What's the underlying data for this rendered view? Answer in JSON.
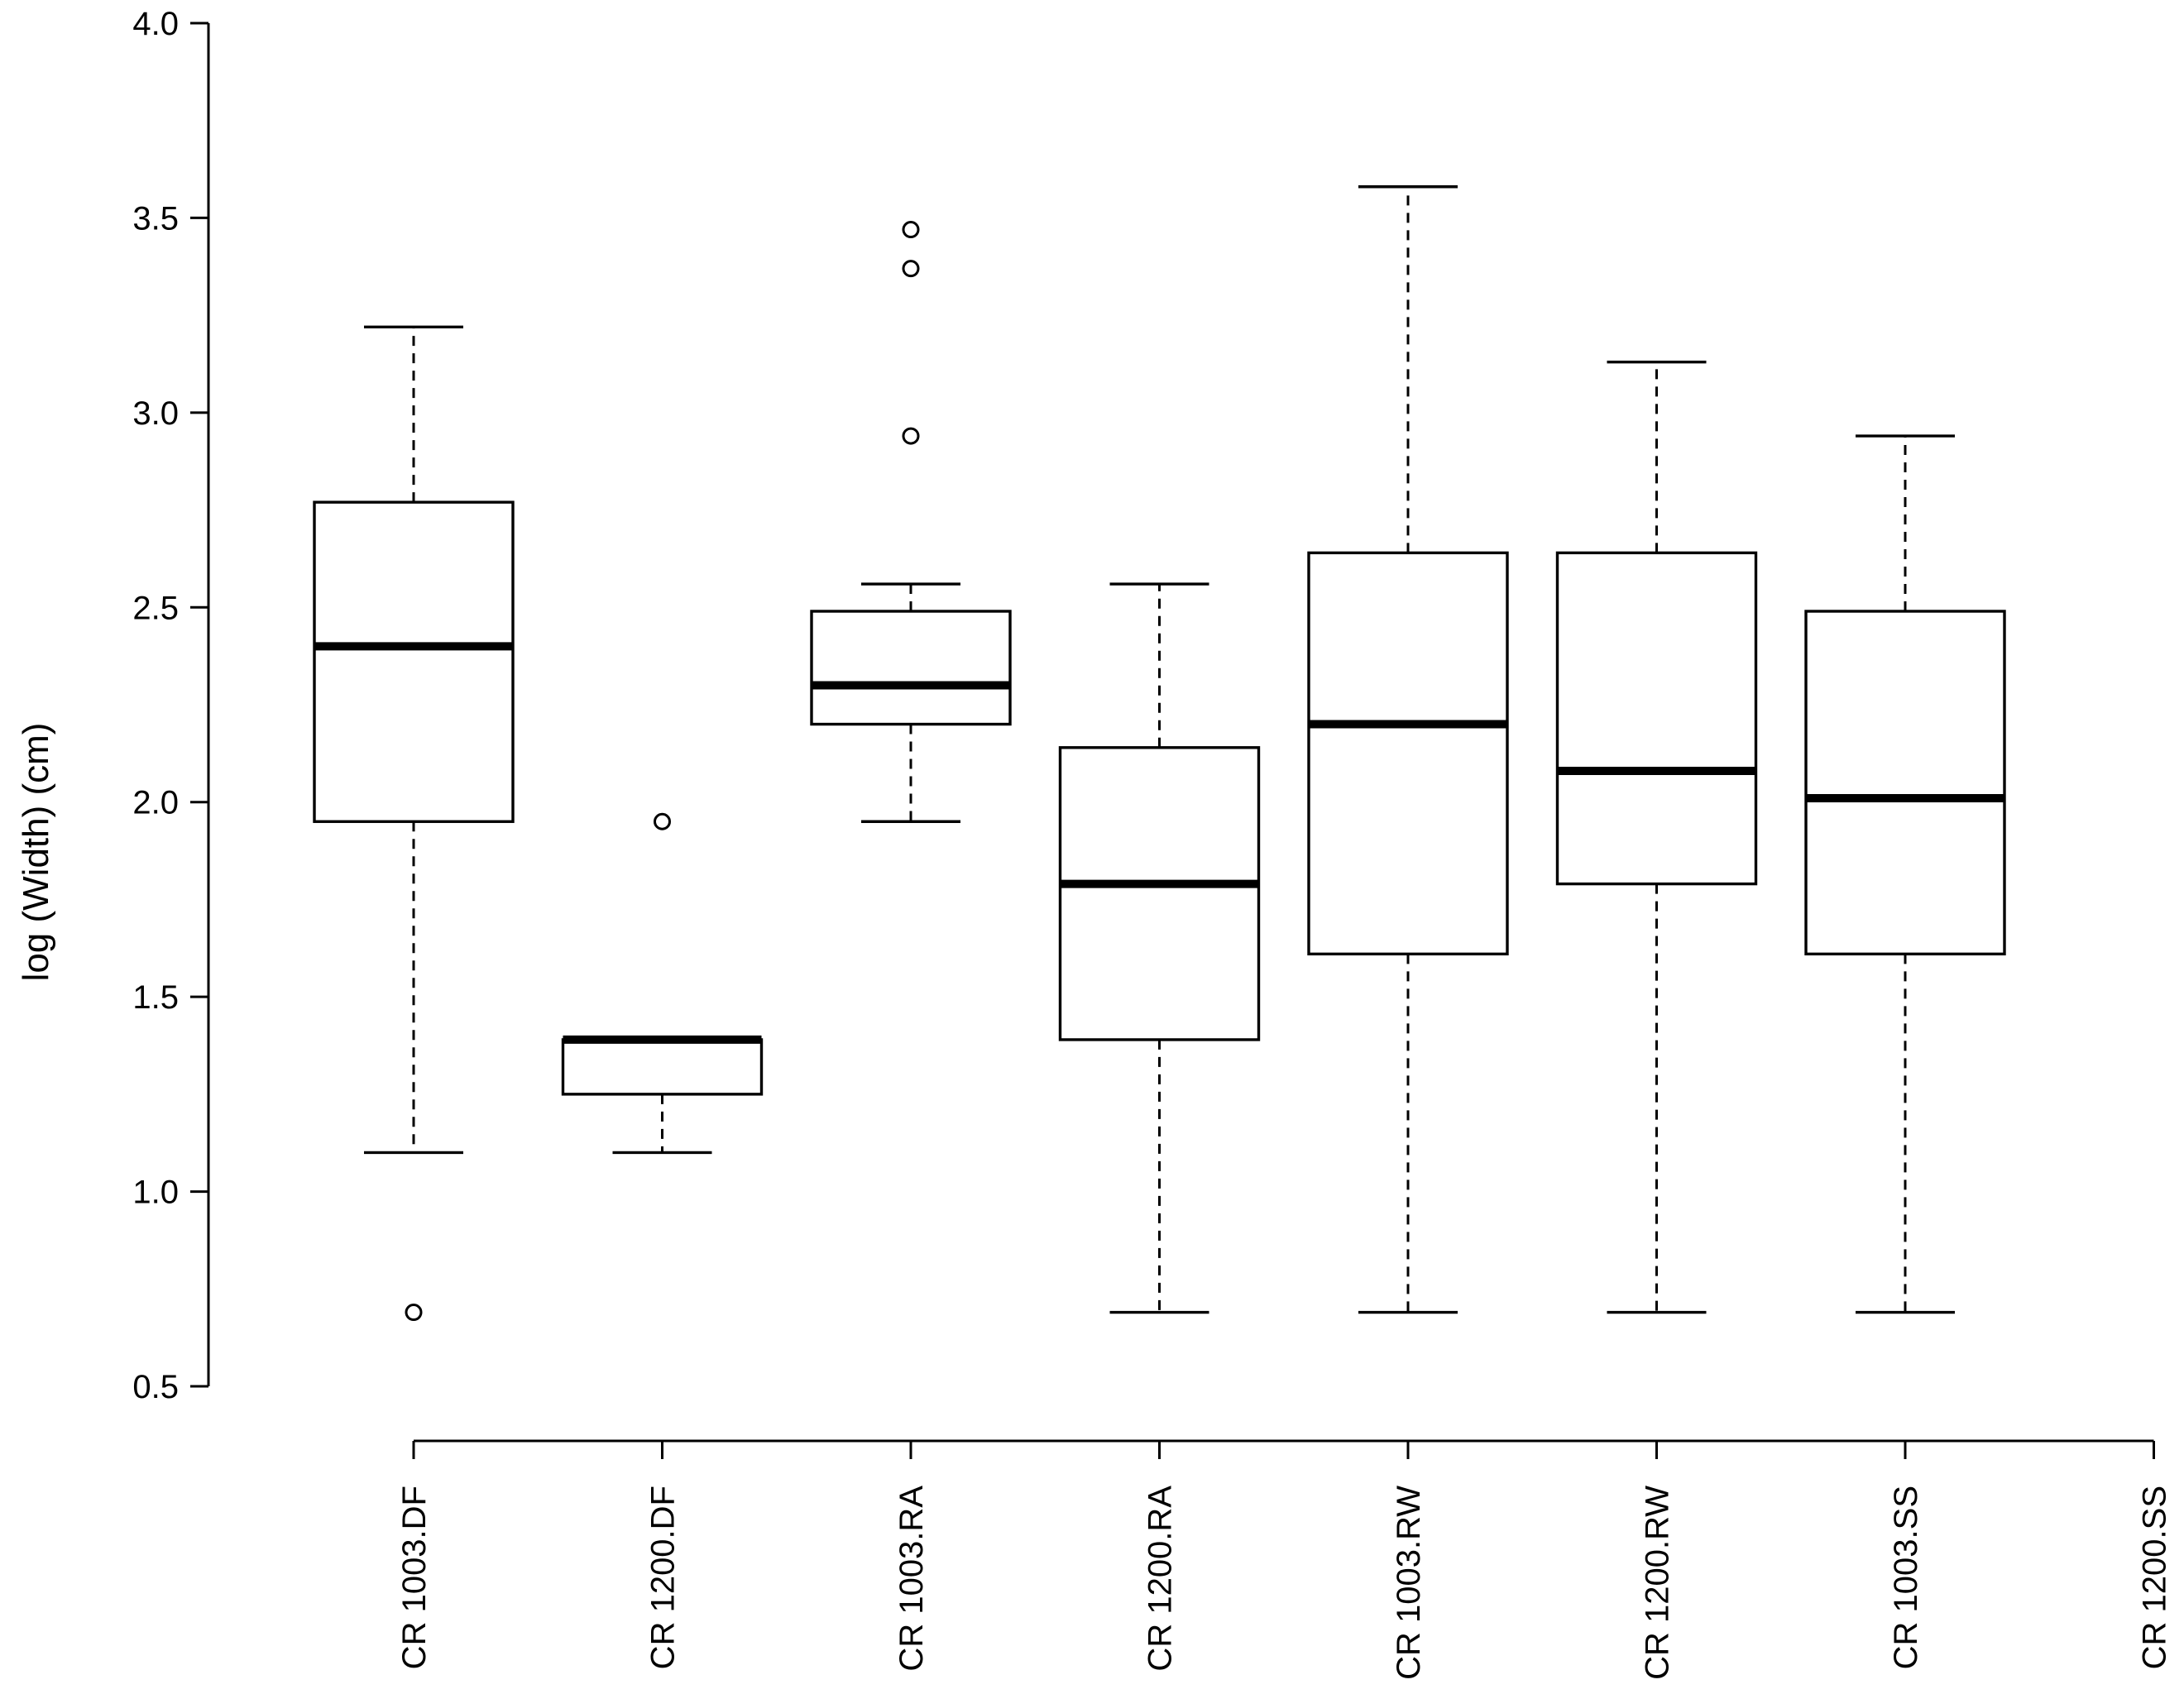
{
  "chart_data": {
    "type": "boxplot",
    "title": "",
    "xlabel": "",
    "ylabel": "log (Width) (cm)",
    "ylim": [
      0.5,
      4.0
    ],
    "yticks": [
      "0.5",
      "1.0",
      "1.5",
      "2.0",
      "2.5",
      "3.0",
      "3.5",
      "4.0"
    ],
    "categories": [
      "CR 1003.DF",
      "CR 1200.DF",
      "CR 1003.RA",
      "CR 1200.RA",
      "CR 1003.RW",
      "CR 1200.RW",
      "CR 1003.SS",
      "CR 1200.SS"
    ],
    "boxes": [
      {
        "category": "CR 1003.DF",
        "whisker_low": 1.1,
        "q1": 1.95,
        "median": 2.4,
        "q3": 2.77,
        "whisker_high": 3.22,
        "outliers": [
          0.69
        ]
      },
      {
        "category": "CR 1200.DF",
        "whisker_low": 1.1,
        "q1": 1.25,
        "median": 1.39,
        "q3": 1.39,
        "whisker_high": 1.39,
        "outliers": [
          1.95
        ]
      },
      {
        "category": "CR 1003.RA",
        "whisker_low": 1.95,
        "q1": 2.2,
        "median": 2.3,
        "q3": 2.49,
        "whisker_high": 2.56,
        "outliers": [
          2.94,
          3.37,
          3.47
        ]
      },
      {
        "category": "CR 1200.RA",
        "whisker_low": 0.69,
        "q1": 1.39,
        "median": 1.79,
        "q3": 2.14,
        "whisker_high": 2.56,
        "outliers": []
      },
      {
        "category": "CR 1003.RW",
        "whisker_low": 0.69,
        "q1": 1.61,
        "median": 2.2,
        "q3": 2.64,
        "whisker_high": 3.58,
        "outliers": []
      },
      {
        "category": "CR 1200.RW",
        "whisker_low": 0.69,
        "q1": 1.79,
        "median": 2.08,
        "q3": 2.64,
        "whisker_high": 3.13,
        "outliers": []
      },
      {
        "category": "CR 1003.SS",
        "whisker_low": 0.69,
        "q1": 1.61,
        "median": 2.01,
        "q3": 2.49,
        "whisker_high": 2.94,
        "outliers": []
      },
      {
        "category": "CR 1200.SS",
        "whisker_low": null,
        "q1": null,
        "median": null,
        "q3": null,
        "whisker_high": null,
        "outliers": []
      }
    ]
  }
}
